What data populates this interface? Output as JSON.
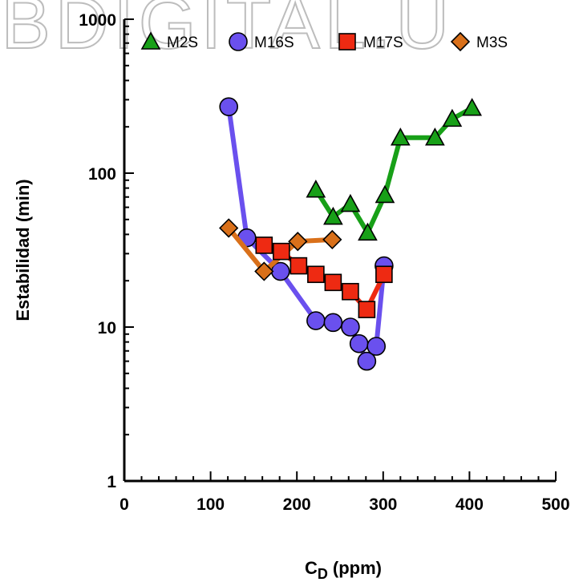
{
  "watermark": ".BDIGITAL.U",
  "chart_data": {
    "type": "line",
    "ylabel": "Estabilidad (min)",
    "xlabel_main": "C",
    "xlabel_sub": "D",
    "xlabel_unit": "(ppm)",
    "xlim": [
      0,
      500
    ],
    "ylim": [
      1,
      1000
    ],
    "yscale": "log",
    "x_ticks": [
      "0",
      "100",
      "200",
      "300",
      "400",
      "500"
    ],
    "y_ticks": [
      "1",
      "10",
      "100",
      "1000"
    ],
    "legend_placement": "top",
    "series": [
      {
        "name": "M2S",
        "color": "#18a018",
        "marker": "triangle",
        "x": [
          222,
          242,
          262,
          282,
          302,
          320,
          360,
          380,
          403
        ],
        "y": [
          78,
          52,
          63,
          41,
          72,
          170,
          170,
          225,
          265
        ]
      },
      {
        "name": "M16S",
        "color": "#6a50ee",
        "marker": "circle",
        "x": [
          121,
          142,
          181,
          222,
          242,
          262,
          272,
          281,
          292,
          301
        ],
        "y": [
          270,
          38,
          23,
          11,
          10.7,
          10,
          7.8,
          6,
          7.5,
          25
        ]
      },
      {
        "name": "M17S",
        "color": "#ee2a12",
        "marker": "square",
        "x": [
          162,
          182,
          202,
          222,
          242,
          262,
          281,
          301
        ],
        "y": [
          34,
          31,
          25,
          22,
          19.5,
          17,
          13,
          22
        ]
      },
      {
        "name": "M3S",
        "color": "#d9701a",
        "marker": "diamond",
        "x": [
          121,
          162,
          201,
          241
        ],
        "y": [
          44,
          23,
          36,
          37
        ]
      }
    ]
  }
}
